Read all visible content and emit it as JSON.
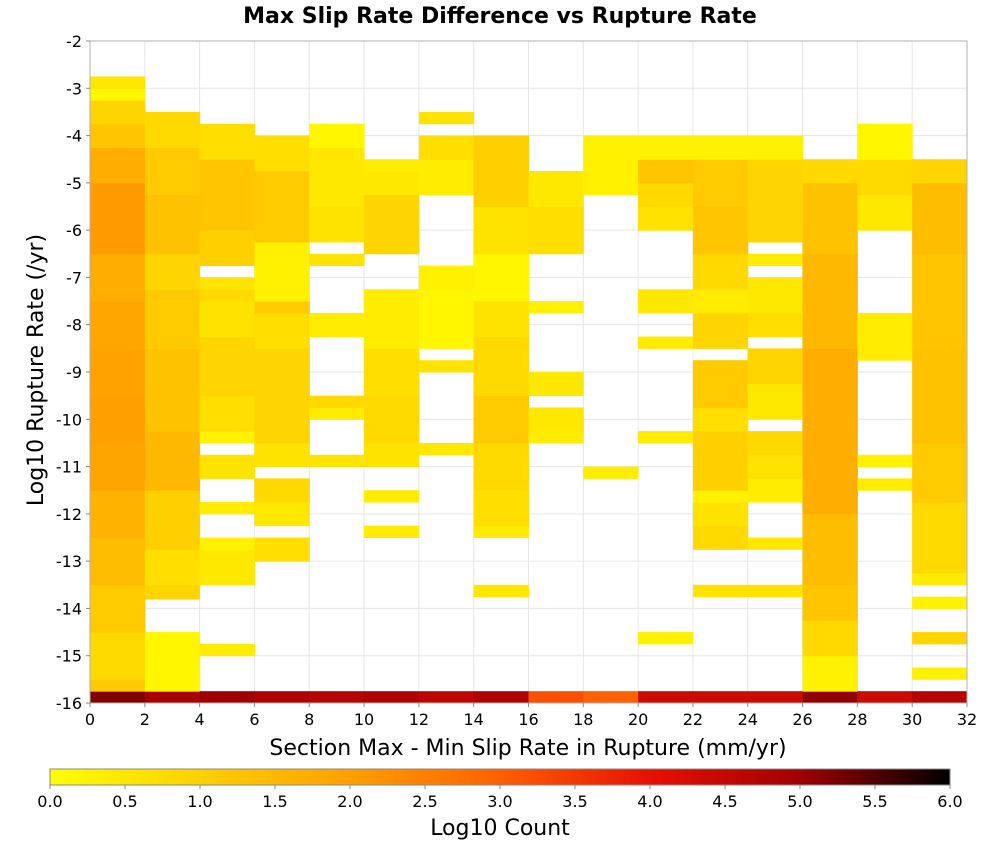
{
  "chart_data": {
    "type": "heatmap",
    "title": "Max Slip Rate Difference vs Rupture Rate",
    "xlabel": "Section Max - Min Slip Rate in Rupture (mm/yr)",
    "ylabel": "Log10 Rupture Rate (/yr)",
    "xlim": [
      0,
      32
    ],
    "ylim": [
      -16,
      -2
    ],
    "x_ticks": [
      "0",
      "2",
      "4",
      "6",
      "8",
      "10",
      "12",
      "14",
      "16",
      "18",
      "20",
      "22",
      "24",
      "26",
      "28",
      "30",
      "32"
    ],
    "y_ticks": [
      "-2",
      "-3",
      "-4",
      "-5",
      "-6",
      "-7",
      "-8",
      "-9",
      "-10",
      "-11",
      "-12",
      "-13",
      "-14",
      "-15",
      "-16"
    ],
    "x_bin_width": 2,
    "y_bin_height": 0.25,
    "colorbar": {
      "label": "Log10 Count",
      "range": [
        0,
        6
      ],
      "ticks": [
        "0.0",
        "0.5",
        "1.0",
        "1.5",
        "2.0",
        "2.5",
        "3.0",
        "3.5",
        "4.0",
        "4.5",
        "5.0",
        "5.5",
        "6.0"
      ],
      "colors": [
        "#ffff00",
        "#ffd000",
        "#ffa000",
        "#ff6000",
        "#e81000",
        "#a00000",
        "#000000"
      ]
    },
    "grid": true,
    "columns": [
      {
        "x": 0,
        "cells": [
          [
            -16,
            -15.75,
            5.2
          ],
          [
            -15.75,
            -15.5,
            1.1
          ],
          [
            -15.5,
            -14.5,
            0.8
          ],
          [
            -14.5,
            -13.5,
            1.1
          ],
          [
            -13.5,
            -12.5,
            1.4
          ],
          [
            -12.5,
            -11.5,
            1.6
          ],
          [
            -11.5,
            -10.5,
            1.9
          ],
          [
            -10.5,
            -9.5,
            2.0
          ],
          [
            -9.5,
            -8.5,
            1.95
          ],
          [
            -8.5,
            -7.5,
            1.85
          ],
          [
            -7.5,
            -6.5,
            1.7
          ],
          [
            -6.5,
            -5.0,
            2.1
          ],
          [
            -5.0,
            -4.25,
            1.7
          ],
          [
            -4.25,
            -3.75,
            1.2
          ],
          [
            -3.75,
            -3.25,
            0.9
          ],
          [
            -3.25,
            -3.0,
            0.2
          ],
          [
            -3.0,
            -2.75,
            0.5
          ]
        ]
      },
      {
        "x": 2,
        "cells": [
          [
            -16,
            -15.75,
            4.9
          ],
          [
            -15.75,
            -14.5,
            0.2
          ],
          [
            -13.8,
            -13.5,
            0.9
          ],
          [
            -13.5,
            -12.75,
            0.7
          ],
          [
            -12.75,
            -11.5,
            1.0
          ],
          [
            -11.5,
            -10.25,
            1.5
          ],
          [
            -10.25,
            -8.5,
            1.3
          ],
          [
            -8.5,
            -7.25,
            1.1
          ],
          [
            -7.25,
            -6.5,
            0.9
          ],
          [
            -6.5,
            -5.25,
            1.3
          ],
          [
            -5.25,
            -4.25,
            1.1
          ],
          [
            -4.25,
            -3.5,
            0.8
          ]
        ]
      },
      {
        "x": 4,
        "cells": [
          [
            -16,
            -15.75,
            5.0
          ],
          [
            -15,
            -14.75,
            0.4
          ],
          [
            -13.5,
            -12.75,
            0.5
          ],
          [
            -12.75,
            -12.5,
            0.3
          ],
          [
            -12,
            -11.75,
            0.4
          ],
          [
            -11.25,
            -10.75,
            0.6
          ],
          [
            -10.5,
            -10.25,
            0.3
          ],
          [
            -10.25,
            -9.5,
            0.7
          ],
          [
            -9.5,
            -8.25,
            0.9
          ],
          [
            -8.25,
            -7.5,
            0.6
          ],
          [
            -7.5,
            -7.25,
            0.8
          ],
          [
            -7.25,
            -7.0,
            0.6
          ],
          [
            -6.75,
            -6.0,
            1.0
          ],
          [
            -6.0,
            -4.5,
            1.2
          ],
          [
            -4.5,
            -3.75,
            0.7
          ]
        ]
      },
      {
        "x": 6,
        "cells": [
          [
            -16,
            -15.75,
            4.8
          ],
          [
            -13,
            -12.5,
            0.7
          ],
          [
            -12.25,
            -11.75,
            0.5
          ],
          [
            -11.75,
            -11.25,
            0.8
          ],
          [
            -11.0,
            -10.5,
            0.6
          ],
          [
            -10.5,
            -8.5,
            0.9
          ],
          [
            -8.5,
            -7.75,
            0.7
          ],
          [
            -7.75,
            -7.5,
            1.1
          ],
          [
            -7.5,
            -6.25,
            0.3
          ],
          [
            -6.25,
            -4.75,
            1.1
          ],
          [
            -4.75,
            -4.0,
            0.7
          ]
        ]
      },
      {
        "x": 8,
        "cells": [
          [
            -16,
            -15.75,
            4.7
          ],
          [
            -11.0,
            -10.75,
            0.6
          ],
          [
            -10.0,
            -9.75,
            0.4
          ],
          [
            -9.75,
            -9.5,
            0.8
          ],
          [
            -8.25,
            -7.75,
            0.4
          ],
          [
            -6.75,
            -6.5,
            0.6
          ],
          [
            -6.25,
            -5.5,
            0.6
          ],
          [
            -5.5,
            -4.25,
            0.5
          ],
          [
            -4.25,
            -3.75,
            0.2
          ]
        ]
      },
      {
        "x": 10,
        "cells": [
          [
            -16,
            -15.75,
            4.8
          ],
          [
            -12.5,
            -12.25,
            0.4
          ],
          [
            -11.75,
            -11.5,
            0.4
          ],
          [
            -11,
            -10.5,
            0.6
          ],
          [
            -10.5,
            -9.5,
            0.8
          ],
          [
            -9.5,
            -8.5,
            0.7
          ],
          [
            -8.5,
            -7.25,
            0.4
          ],
          [
            -6.5,
            -5.25,
            0.9
          ],
          [
            -5.25,
            -4.75,
            0.5
          ],
          [
            -4.75,
            -4.5,
            0.4
          ]
        ]
      },
      {
        "x": 12,
        "cells": [
          [
            -16,
            -15.75,
            4.6
          ],
          [
            -10.75,
            -10.5,
            0.5
          ],
          [
            -9.0,
            -8.75,
            0.6
          ],
          [
            -8.5,
            -7.25,
            0.2
          ],
          [
            -7.25,
            -6.75,
            0.3
          ],
          [
            -5.25,
            -4.5,
            0.4
          ],
          [
            -4.5,
            -4.0,
            0.7
          ],
          [
            -3.75,
            -3.5,
            0.6
          ]
        ]
      },
      {
        "x": 14,
        "cells": [
          [
            -16,
            -15.75,
            4.8
          ],
          [
            -13.75,
            -13.5,
            0.5
          ],
          [
            -12.5,
            -12.25,
            0.4
          ],
          [
            -12.25,
            -11.5,
            0.7
          ],
          [
            -11.5,
            -10.5,
            0.8
          ],
          [
            -10.5,
            -9.5,
            1.1
          ],
          [
            -9.5,
            -8.25,
            0.8
          ],
          [
            -8.25,
            -7.5,
            0.6
          ],
          [
            -7.5,
            -6.5,
            0.2
          ],
          [
            -6.5,
            -5.5,
            0.6
          ],
          [
            -5.5,
            -4.0,
            1.0
          ]
        ]
      },
      {
        "x": 16,
        "cells": [
          [
            -16,
            -15.75,
            3.2
          ],
          [
            -10.5,
            -10.25,
            0.4
          ],
          [
            -10.25,
            -9.75,
            0.5
          ],
          [
            -9.5,
            -9.0,
            0.5
          ],
          [
            -7.75,
            -7.5,
            0.3
          ],
          [
            -6.5,
            -5.5,
            0.7
          ],
          [
            -5.5,
            -4.75,
            0.5
          ]
        ]
      },
      {
        "x": 18,
        "cells": [
          [
            -16,
            -15.75,
            3.0
          ],
          [
            -11.25,
            -11.0,
            0.4
          ],
          [
            -5.25,
            -4.0,
            0.3
          ]
        ]
      },
      {
        "x": 20,
        "cells": [
          [
            -16,
            -15.75,
            4.4
          ],
          [
            -14.75,
            -14.5,
            0.3
          ],
          [
            -10.5,
            -10.25,
            0.4
          ],
          [
            -8.5,
            -8.25,
            0.4
          ],
          [
            -7.75,
            -7.25,
            0.5
          ],
          [
            -6.0,
            -5.5,
            0.6
          ],
          [
            -5.5,
            -5.0,
            0.8
          ],
          [
            -5.0,
            -4.5,
            1.2
          ],
          [
            -4.5,
            -4.0,
            0.3
          ]
        ]
      },
      {
        "x": 22,
        "cells": [
          [
            -16,
            -15.75,
            4.4
          ],
          [
            -13.75,
            -13.5,
            0.6
          ],
          [
            -12.75,
            -12.25,
            0.8
          ],
          [
            -12.25,
            -11.75,
            0.6
          ],
          [
            -11.75,
            -11.5,
            0.3
          ],
          [
            -11.5,
            -10.25,
            1.0
          ],
          [
            -10.25,
            -9.75,
            0.7
          ],
          [
            -9.75,
            -8.75,
            1.1
          ],
          [
            -8.5,
            -7.75,
            0.9
          ],
          [
            -7.75,
            -7.25,
            0.4
          ],
          [
            -7.25,
            -6.5,
            0.8
          ],
          [
            -6.5,
            -5.5,
            1.2
          ],
          [
            -5.5,
            -4.5,
            1.1
          ],
          [
            -4.5,
            -4.0,
            0.3
          ]
        ]
      },
      {
        "x": 24,
        "cells": [
          [
            -16,
            -15.75,
            4.4
          ],
          [
            -13.75,
            -13.5,
            0.6
          ],
          [
            -12.75,
            -12.5,
            0.5
          ],
          [
            -11.75,
            -11.25,
            0.4
          ],
          [
            -11.25,
            -10.75,
            0.6
          ],
          [
            -10.75,
            -10.25,
            0.8
          ],
          [
            -10.0,
            -9.25,
            0.5
          ],
          [
            -9.25,
            -8.5,
            0.9
          ],
          [
            -8.25,
            -7.75,
            0.7
          ],
          [
            -7.75,
            -7.0,
            0.5
          ],
          [
            -6.75,
            -6.5,
            0.4
          ],
          [
            -6.25,
            -6.0,
            0.9
          ],
          [
            -6.0,
            -4.5,
            0.9
          ],
          [
            -4.5,
            -4.0,
            0.3
          ]
        ]
      },
      {
        "x": 26,
        "cells": [
          [
            -16,
            -15.75,
            5.1
          ],
          [
            -15.75,
            -15.0,
            0.3
          ],
          [
            -15.0,
            -14.25,
            0.8
          ],
          [
            -14.25,
            -13.5,
            1.2
          ],
          [
            -13.5,
            -12.0,
            1.4
          ],
          [
            -12.0,
            -8.5,
            1.7
          ],
          [
            -8.5,
            -6.5,
            1.5
          ],
          [
            -6.5,
            -5.0,
            1.3
          ],
          [
            -5.0,
            -4.5,
            0.8
          ]
        ]
      },
      {
        "x": 28,
        "cells": [
          [
            -16,
            -15.75,
            4.4
          ],
          [
            -11.5,
            -11.25,
            0.4
          ],
          [
            -11.0,
            -10.75,
            0.3
          ],
          [
            -8.75,
            -7.75,
            0.4
          ],
          [
            -6.0,
            -5.25,
            0.5
          ],
          [
            -5.25,
            -4.5,
            0.8
          ],
          [
            -4.5,
            -3.75,
            0.2
          ]
        ]
      },
      {
        "x": 30,
        "cells": [
          [
            -16,
            -15.75,
            4.7
          ],
          [
            -15.5,
            -15.25,
            0.3
          ],
          [
            -14.75,
            -14.5,
            0.9
          ],
          [
            -14.0,
            -13.75,
            0.3
          ],
          [
            -13.5,
            -13.25,
            0.4
          ],
          [
            -13.25,
            -11.75,
            0.8
          ],
          [
            -11.75,
            -10.5,
            1.1
          ],
          [
            -10.5,
            -8.5,
            1.3
          ],
          [
            -8.5,
            -6.5,
            1.2
          ],
          [
            -6.5,
            -5.0,
            1.4
          ],
          [
            -5.0,
            -4.5,
            0.9
          ]
        ]
      }
    ]
  }
}
